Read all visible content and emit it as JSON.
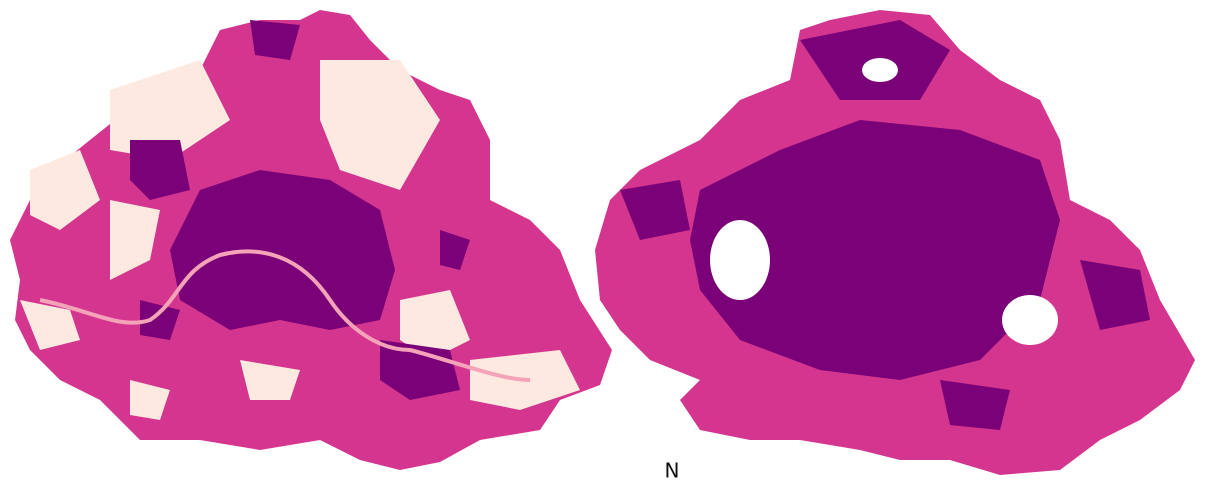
{
  "north_label": "N"
}
